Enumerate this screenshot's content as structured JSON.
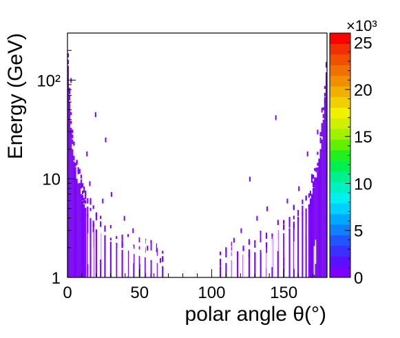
{
  "chart_data": {
    "type": "heatmap",
    "title": "",
    "xlabel": "polar angle θ(°)",
    "ylabel": "Energy (GeV)",
    "xlim": [
      0,
      180
    ],
    "ylim": [
      1,
      300
    ],
    "y_scale": "log",
    "x_ticks": [
      "0",
      "50",
      "100",
      "150"
    ],
    "x_tick_values": [
      0,
      50,
      100,
      150
    ],
    "y_ticks": [
      "1",
      "10",
      "10²"
    ],
    "y_tick_values": [
      1,
      10,
      100
    ],
    "colorbar": {
      "range": [
        0,
        26
      ],
      "multiplier": "×10³",
      "ticks": [
        "0",
        "5",
        "10",
        "15",
        "20",
        "25"
      ],
      "tick_values": [
        0,
        5,
        10,
        15,
        20,
        25
      ],
      "palette": [
        "#7a00ff",
        "#5a10ff",
        "#3a30ff",
        "#2055ff",
        "#1080ff",
        "#00a8ff",
        "#00d0ff",
        "#00f0f0",
        "#00f0c0",
        "#00f090",
        "#00f050",
        "#20f020",
        "#60f000",
        "#a0f000",
        "#d0f000",
        "#f0f000",
        "#f0d000",
        "#f0b000",
        "#f09000",
        "#f07000",
        "#f05000",
        "#f03000",
        "#ff0000"
      ]
    },
    "cells": [
      {
        "x": 0.5,
        "e_top": 140
      },
      {
        "x": 1.5,
        "e_top": 60
      },
      {
        "x": 2.5,
        "e_top": 30
      },
      {
        "x": 3.5,
        "e_top": 20
      },
      {
        "x": 4.5,
        "e_top": 15
      },
      {
        "x": 5.5,
        "e_top": 12
      },
      {
        "x": 6.5,
        "e_top": 10
      },
      {
        "x": 7.5,
        "e_top": 9
      },
      {
        "x": 8.5,
        "e_top": 8
      },
      {
        "x": 9.5,
        "e_top": 7
      },
      {
        "x": 10.5,
        "e_top": 6
      },
      {
        "x": 11.5,
        "e_top": 5.5
      },
      {
        "x": 12.5,
        "e_top": 5
      },
      {
        "x": 14,
        "e_top": 4.5
      },
      {
        "x": 16,
        "e_top": 4
      },
      {
        "x": 18,
        "e_top": 3.5
      },
      {
        "x": 20,
        "e_top": 3
      },
      {
        "x": 23,
        "e_top": 2.8
      },
      {
        "x": 26,
        "e_top": 2.6
      },
      {
        "x": 30,
        "e_top": 2.3
      },
      {
        "x": 34,
        "e_top": 2.1
      },
      {
        "x": 38,
        "e_top": 1.9
      },
      {
        "x": 42,
        "e_top": 1.8
      },
      {
        "x": 46,
        "e_top": 1.7
      },
      {
        "x": 50,
        "e_top": 1.65
      },
      {
        "x": 54,
        "e_top": 1.6
      },
      {
        "x": 58,
        "e_top": 1.5
      },
      {
        "x": 62,
        "e_top": 1.4
      },
      {
        "x": 66,
        "e_top": 1.3
      },
      {
        "x": 106,
        "e_top": 1.3
      },
      {
        "x": 110,
        "e_top": 1.4
      },
      {
        "x": 114,
        "e_top": 1.5
      },
      {
        "x": 118,
        "e_top": 1.6
      },
      {
        "x": 122,
        "e_top": 1.65
      },
      {
        "x": 126,
        "e_top": 1.7
      },
      {
        "x": 130,
        "e_top": 1.8
      },
      {
        "x": 134,
        "e_top": 1.9
      },
      {
        "x": 138,
        "e_top": 2.1
      },
      {
        "x": 142,
        "e_top": 2.3
      },
      {
        "x": 146,
        "e_top": 2.6
      },
      {
        "x": 150,
        "e_top": 2.8
      },
      {
        "x": 154,
        "e_top": 3
      },
      {
        "x": 157,
        "e_top": 3.5
      },
      {
        "x": 160,
        "e_top": 4
      },
      {
        "x": 163,
        "e_top": 4.5
      },
      {
        "x": 165.5,
        "e_top": 5
      },
      {
        "x": 167.5,
        "e_top": 5.5
      },
      {
        "x": 168.5,
        "e_top": 6
      },
      {
        "x": 169.5,
        "e_top": 7
      },
      {
        "x": 170.5,
        "e_top": 8
      },
      {
        "x": 171.5,
        "e_top": 9
      },
      {
        "x": 172.5,
        "e_top": 10
      },
      {
        "x": 173.5,
        "e_top": 12
      },
      {
        "x": 174.5,
        "e_top": 15
      },
      {
        "x": 175.5,
        "e_top": 20
      },
      {
        "x": 176.5,
        "e_top": 25
      },
      {
        "x": 177.5,
        "e_top": 35
      },
      {
        "x": 178.5,
        "e_top": 60
      },
      {
        "x": 179.5,
        "e_top": 120
      }
    ],
    "isolated_points": [
      {
        "x": 2.5,
        "e": 100
      },
      {
        "x": 19.5,
        "e": 45
      },
      {
        "x": 26.5,
        "e": 25
      },
      {
        "x": 8.5,
        "e": 12
      },
      {
        "x": 15.5,
        "e": 9
      },
      {
        "x": 24.5,
        "e": 6
      },
      {
        "x": 30.5,
        "e": 7
      },
      {
        "x": 126.5,
        "e": 10
      },
      {
        "x": 144.5,
        "e": 42
      },
      {
        "x": 138.5,
        "e": 5
      },
      {
        "x": 160.5,
        "e": 8
      },
      {
        "x": 152.5,
        "e": 6
      },
      {
        "x": 173.5,
        "e": 30
      },
      {
        "x": 176.5,
        "e": 50
      },
      {
        "x": 13.5,
        "e": 18
      },
      {
        "x": 166.5,
        "e": 18
      },
      {
        "x": 39.5,
        "e": 4
      },
      {
        "x": 45.5,
        "e": 3
      },
      {
        "x": 55.5,
        "e": 2
      },
      {
        "x": 120.5,
        "e": 3
      },
      {
        "x": 131.5,
        "e": 4
      },
      {
        "x": 64.5,
        "e": 1.5
      },
      {
        "x": 115.5,
        "e": 2.4
      }
    ]
  }
}
